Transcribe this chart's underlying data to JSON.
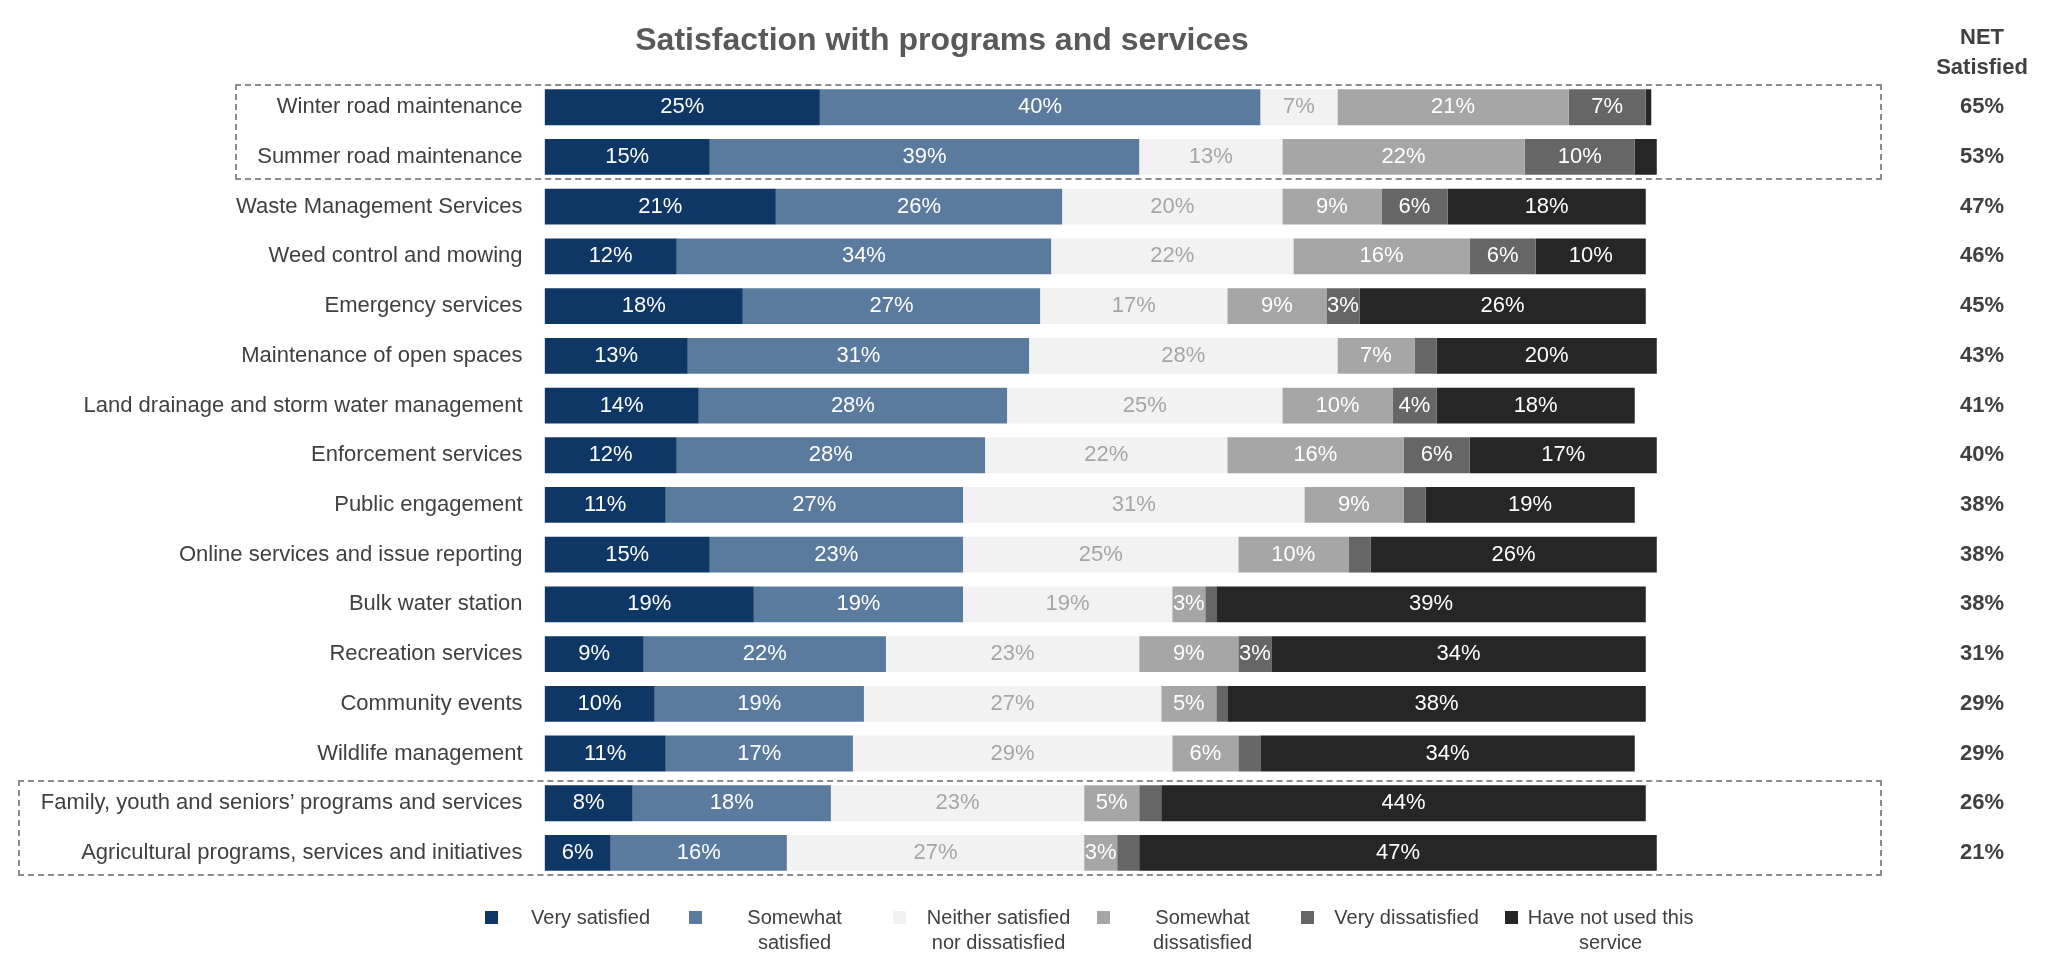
{
  "chart_data": {
    "type": "bar",
    "orientation": "horizontal",
    "stacked": true,
    "title": "Satisfaction with programs and services",
    "categories": [
      "Winter road maintenance",
      "Summer road maintenance",
      "Waste Management Services",
      "Weed control and mowing",
      "Emergency services",
      "Maintenance of open spaces",
      "Land drainage and storm water management",
      "Enforcement services",
      "Public engagement",
      "Online services and issue reporting",
      "Bulk water station",
      "Recreation services",
      "Community events",
      "Wildlife management",
      "Family, youth and seniors’ programs and services",
      "Agricultural programs, services and initiatives"
    ],
    "series": [
      {
        "name": "Very satisfied",
        "color": "#0e3766",
        "values": [
          25,
          15,
          21,
          12,
          18,
          13,
          14,
          12,
          11,
          15,
          19,
          9,
          10,
          11,
          8,
          6
        ],
        "value_labels": [
          "25%",
          "15%",
          "21%",
          "12%",
          "18%",
          "13%",
          "14%",
          "12%",
          "11%",
          "15%",
          "19%",
          "9%",
          "10%",
          "11%",
          "8%",
          "6%"
        ]
      },
      {
        "name": "Somewhat satisfied",
        "color": "#5b7b9e",
        "values": [
          40,
          39,
          26,
          34,
          27,
          31,
          28,
          28,
          27,
          23,
          19,
          22,
          19,
          17,
          18,
          16
        ],
        "value_labels": [
          "40%",
          "39%",
          "26%",
          "34%",
          "27%",
          "31%",
          "28%",
          "28%",
          "27%",
          "23%",
          "19%",
          "22%",
          "19%",
          "17%",
          "18%",
          "16%"
        ]
      },
      {
        "name": "Neither satisfied nor dissatisfied",
        "color": "#f2f2f2",
        "values": [
          7,
          13,
          20,
          22,
          17,
          28,
          25,
          22,
          31,
          25,
          19,
          23,
          27,
          29,
          23,
          27
        ],
        "value_labels": [
          "7%",
          "13%",
          "20%",
          "22%",
          "17%",
          "28%",
          "25%",
          "22%",
          "31%",
          "25%",
          "19%",
          "23%",
          "27%",
          "29%",
          "23%",
          "27%"
        ]
      },
      {
        "name": "Somewhat dissatisfied",
        "color": "#a6a6a6",
        "values": [
          21,
          22,
          9,
          16,
          9,
          7,
          10,
          16,
          9,
          10,
          3,
          9,
          5,
          6,
          5,
          3
        ],
        "value_labels": [
          "21%",
          "22%",
          "9%",
          "16%",
          "9%",
          "7%",
          "10%",
          "16%",
          "9%",
          "10%",
          "3%",
          "9%",
          "5%",
          "6%",
          "5%",
          "3%"
        ]
      },
      {
        "name": "Very dissatisfied",
        "color": "#666666",
        "values": [
          7,
          10,
          6,
          6,
          3,
          2,
          4,
          6,
          2,
          2,
          1,
          3,
          1,
          2,
          2,
          2
        ],
        "value_labels": [
          "7%",
          "10%",
          "6%",
          "6%",
          "3%",
          null,
          "4%",
          "6%",
          null,
          null,
          null,
          "3%",
          null,
          null,
          null,
          null
        ]
      },
      {
        "name": "Have not used this service",
        "color": "#262626",
        "values": [
          0.5,
          2,
          18,
          10,
          26,
          20,
          18,
          17,
          19,
          26,
          39,
          34,
          38,
          34,
          44,
          47
        ],
        "value_labels": [
          null,
          null,
          "18%",
          "10%",
          "26%",
          "20%",
          "18%",
          "17%",
          "19%",
          "26%",
          "39%",
          "34%",
          "38%",
          "34%",
          "44%",
          "47%"
        ]
      }
    ],
    "annotations": [
      "NET Satisfied",
      "65%",
      "53%",
      "47%",
      "46%",
      "45%",
      "43%",
      "41%",
      "40%",
      "38%",
      "38%",
      "38%",
      "31%",
      "29%",
      "29%",
      "26%",
      "21%"
    ],
    "legend": "bottom"
  }
}
